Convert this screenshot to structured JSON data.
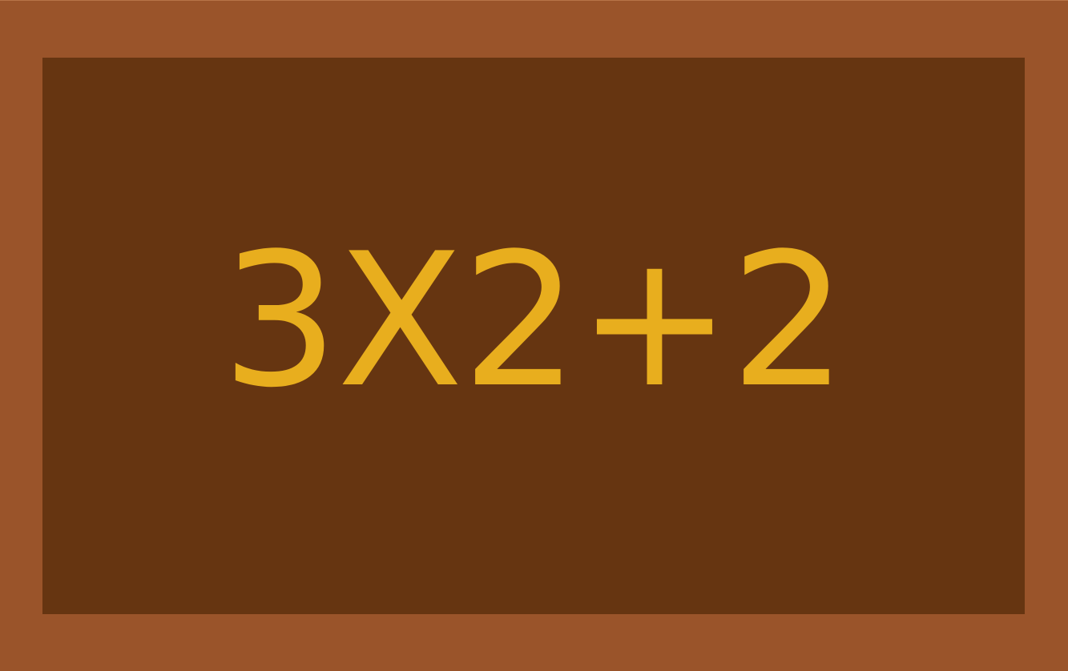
{
  "board": {
    "expression": "3X2+2"
  },
  "colors": {
    "frame": "#9a542a",
    "board": "#663511",
    "text": "#e8ae1e"
  }
}
